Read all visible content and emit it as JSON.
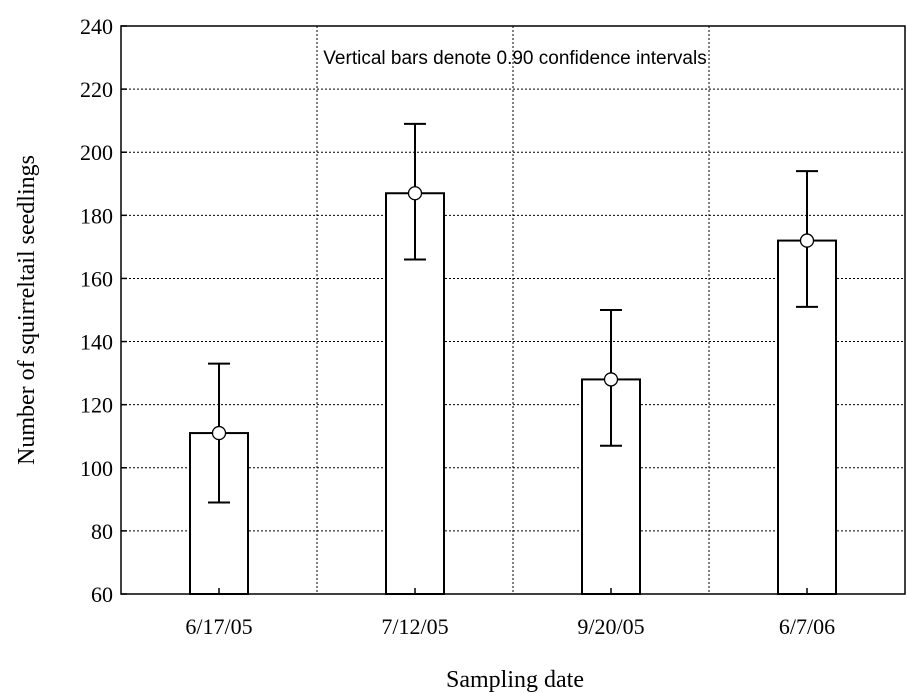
{
  "chart_data": {
    "type": "bar",
    "annotation": "Vertical bars denote 0.90 confidence intervals",
    "xlabel": "Sampling date",
    "ylabel": "Number of squirreltail seedlings",
    "categories": [
      "6/17/05",
      "7/12/05",
      "9/20/05",
      "6/7/06"
    ],
    "values": [
      111,
      187,
      128,
      172
    ],
    "ci_lower": [
      89,
      166,
      107,
      151
    ],
    "ci_upper": [
      133,
      209,
      150,
      194
    ],
    "ylim": [
      60,
      240
    ],
    "yticks": [
      60,
      80,
      100,
      120,
      140,
      160,
      180,
      200,
      220,
      240
    ],
    "grid": true
  }
}
